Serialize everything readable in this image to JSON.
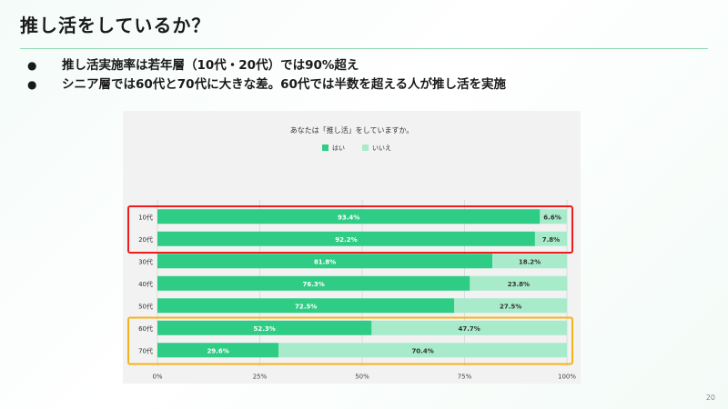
{
  "slide": {
    "title": "推し活をしているか？",
    "bullets": [
      "推し活実施率は若年層（10代・20代）では90%超え",
      "シニア層では60代と70代に大きな差。60代では半数を超える人が推し活を実施"
    ],
    "page_number": "20"
  },
  "chart_data": {
    "type": "bar",
    "orientation": "horizontal",
    "stacked": "percent",
    "title": "あなたは「推し活」をしていますか。",
    "categories": [
      "10代",
      "20代",
      "30代",
      "40代",
      "50代",
      "60代",
      "70代"
    ],
    "series": [
      {
        "name": "はい",
        "color": "#2ecc84",
        "values": [
          93.4,
          92.2,
          81.8,
          76.3,
          72.5,
          52.3,
          29.6
        ],
        "labels": [
          "93.4%",
          "92.2%",
          "81.8%",
          "76.3%",
          "72.5%",
          "52.3%",
          "29.6%"
        ]
      },
      {
        "name": "いいえ",
        "color": "#a8ebcb",
        "values": [
          6.6,
          7.8,
          18.2,
          23.8,
          27.5,
          47.7,
          70.4
        ],
        "labels": [
          "6.6%",
          "7.8%",
          "18.2%",
          "23.8%",
          "27.5%",
          "47.7%",
          "70.4%"
        ]
      }
    ],
    "x_ticks": [
      "0%",
      "25%",
      "50%",
      "75%",
      "100%"
    ],
    "xlim": [
      0,
      100
    ],
    "legend_position": "top",
    "grid": true,
    "highlights": [
      {
        "categories": [
          "10代",
          "20代"
        ],
        "color": "#ee1c1c"
      },
      {
        "categories": [
          "60代",
          "70代"
        ],
        "color": "#f6b21a"
      }
    ]
  }
}
